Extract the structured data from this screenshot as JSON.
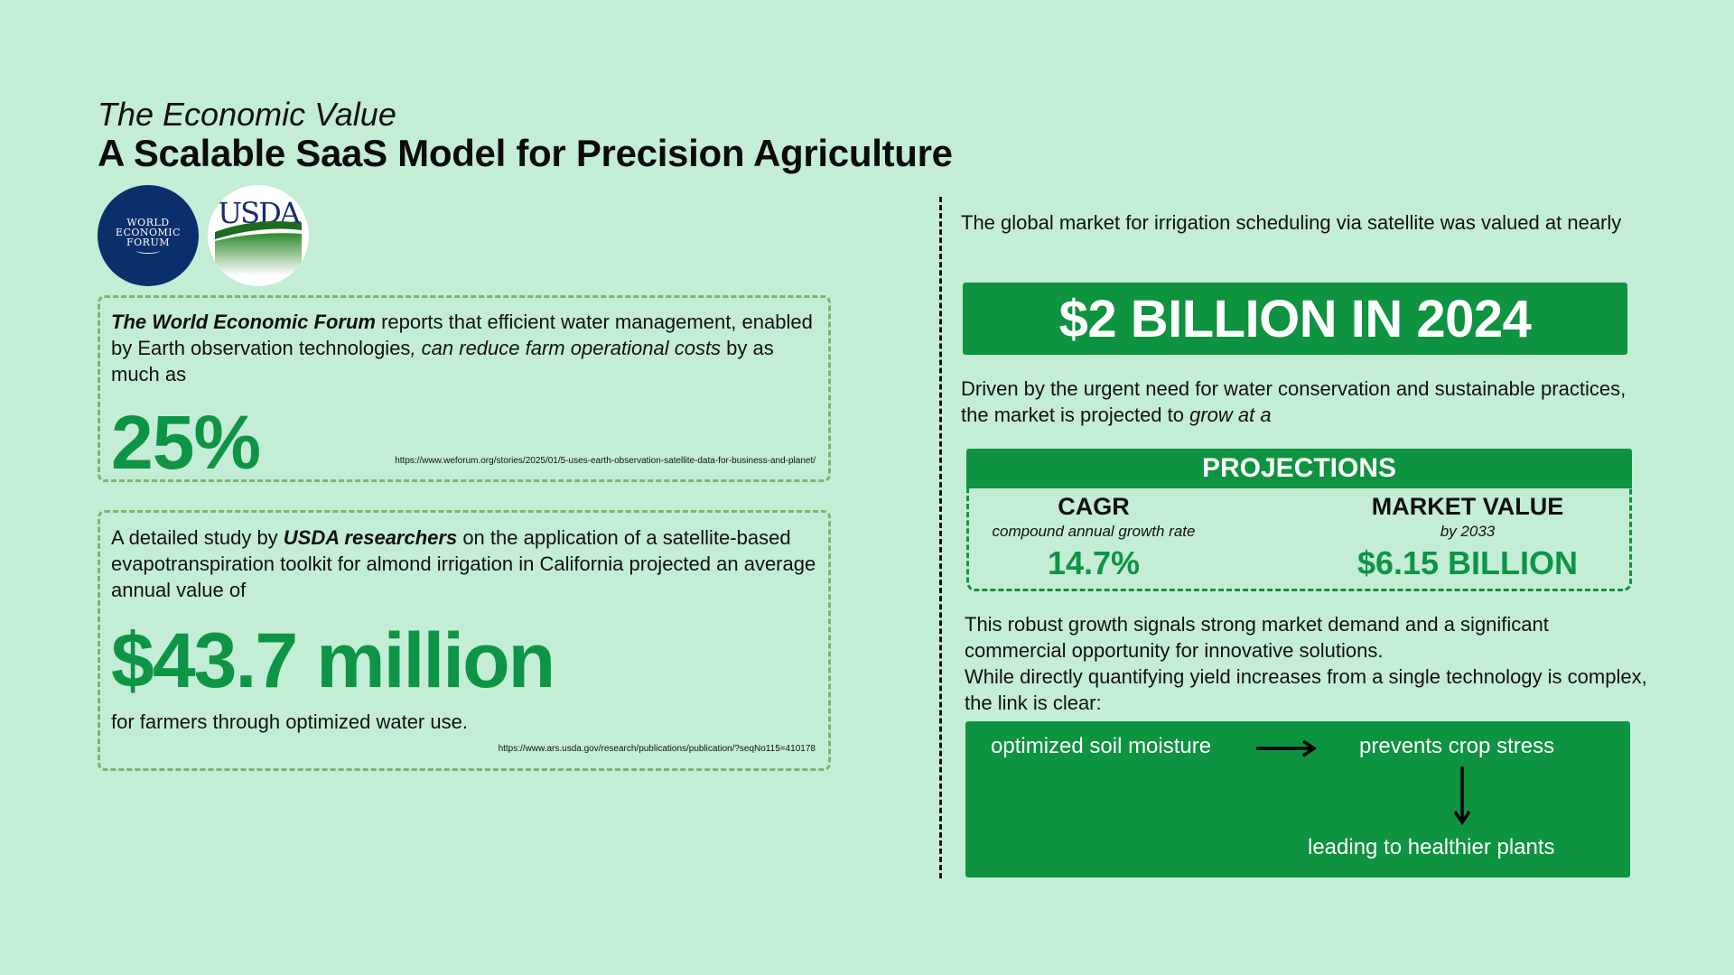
{
  "header": {
    "subtitle": "The Economic Value",
    "title": "A Scalable SaaS Model for Precision Agriculture"
  },
  "logos": {
    "wef": {
      "icon": "world-economic-forum-logo",
      "lines": [
        "WORLD",
        "ECONOMIC",
        "FORUM"
      ]
    },
    "usda": {
      "icon": "usda-logo",
      "text": "USDA"
    }
  },
  "left": {
    "wef_card": {
      "org": "The World Economic Forum",
      "text_1": " reports that efficient water management, enabled by Earth observation technologies",
      "emphasis": ", can reduce farm operational costs",
      "text_2": " by as much as",
      "stat": "25%",
      "source_url": "https://www.weforum.org/stories/2025/01/5-uses-earth-observation-satellite-data-for-business-and-planet/"
    },
    "usda_card": {
      "text_1": "A detailed study by ",
      "org": "USDA researchers",
      "text_2": " on the application of a satellite-based evapotranspiration toolkit for almond irrigation in California projected an average annual value of",
      "stat": "$43.7 million",
      "after": "for farmers through optimized water use.",
      "source_url": "https://www.ars.usda.gov/research/publications/publication/?seqNo115=410178"
    }
  },
  "right": {
    "market_intro": "The global market for irrigation scheduling via satellite was valued at nearly",
    "market_value": "$2 BILLION IN 2024",
    "driven_text_1": "Driven by the urgent need for water conservation and sustainable practices, the market is projected to ",
    "driven_emphasis": "grow at a",
    "projections": {
      "header": "PROJECTIONS",
      "cagr": {
        "label": "CAGR",
        "sub": "compound annual growth rate",
        "value": "14.7%"
      },
      "market": {
        "label": "MARKET VALUE",
        "sub": "by 2033",
        "value": "$6.15 BILLION"
      }
    },
    "robust_text_1": " This robust growth signals strong market demand and a significant commercial opportunity for innovative solutions.",
    "robust_text_2": "While directly quantifying yield increases from a single technology is complex, the link is clear:",
    "flow": {
      "step_1": "optimized soil moisture",
      "step_2": "prevents crop stress",
      "step_3": "leading to healthier plants",
      "arrow_right_icon": "arrow-right-icon",
      "arrow_down_icon": "arrow-down-icon"
    }
  },
  "colors": {
    "background": "#c4edd6",
    "accent_green": "#0e9340",
    "stat_green": "#0e9445",
    "dashed_border": "#77b86a"
  }
}
